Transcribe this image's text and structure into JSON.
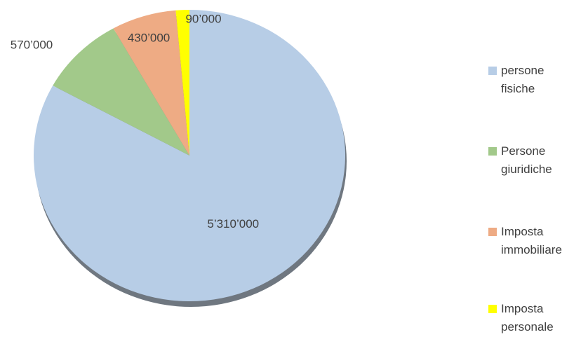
{
  "chart_data": {
    "type": "pie",
    "categories": [
      "persone fisiche",
      "Persone giuridiche",
      "Imposta immobiliare",
      "Imposta personale"
    ],
    "values": [
      5310000,
      570000,
      430000,
      90000
    ],
    "value_labels": [
      "5’310’000",
      "570’000",
      "430’000",
      "90’000"
    ],
    "colors": [
      "#b7cde6",
      "#a2c98a",
      "#eeab84",
      "#ffff00"
    ],
    "legend": "right"
  }
}
